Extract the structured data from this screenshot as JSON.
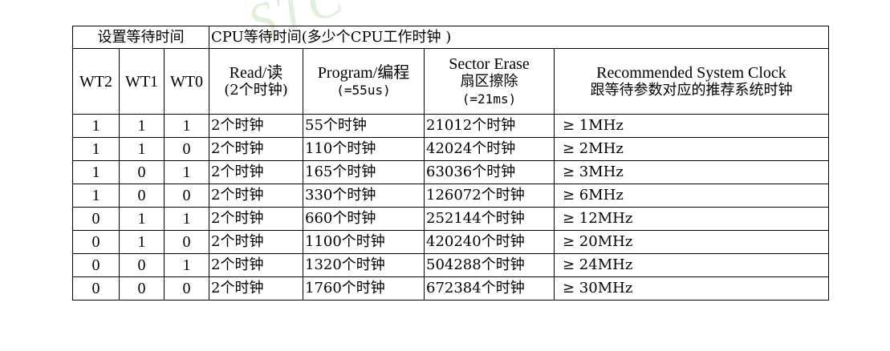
{
  "table": {
    "group_headers": {
      "set_wait": "设置等待时间",
      "cpu_wait": "CPU等待时间(多少个CPU工作时钟 )"
    },
    "columns": {
      "wt2": "WT2",
      "wt1": "WT1",
      "wt0": "WT0",
      "read": [
        "Read/读",
        "(2个时钟)"
      ],
      "program": [
        "Program/编程",
        "(=55us)"
      ],
      "sector_erase": [
        "Sector Erase",
        "扇区擦除",
        "(=21ms)"
      ],
      "clock": [
        "Recommended System Clock",
        "跟等待参数对应的推荐系统时钟"
      ]
    },
    "rows": [
      [
        "1",
        "1",
        "1",
        "2个时钟",
        "55个时钟",
        "21012个时钟",
        "≥ 1MHz"
      ],
      [
        "1",
        "1",
        "0",
        "2个时钟",
        "110个时钟",
        "42024个时钟",
        "≥ 2MHz"
      ],
      [
        "1",
        "0",
        "1",
        "2个时钟",
        "165个时钟",
        "63036个时钟",
        "≥ 3MHz"
      ],
      [
        "1",
        "0",
        "0",
        "2个时钟",
        "330个时钟",
        "126072个时钟",
        "≥ 6MHz"
      ],
      [
        "0",
        "1",
        "1",
        "2个时钟",
        "660个时钟",
        "252144个时钟",
        "≥ 12MHz"
      ],
      [
        "0",
        "1",
        "0",
        "2个时钟",
        "1100个时钟",
        "420240个时钟",
        "≥ 20MHz"
      ],
      [
        "0",
        "0",
        "1",
        "2个时钟",
        "1320个时钟",
        "504288个时钟",
        "≥ 24MHz"
      ],
      [
        "0",
        "0",
        "0",
        "2个时钟",
        "1760个时钟",
        "672384个时钟",
        "≥ 30MHz"
      ]
    ]
  }
}
